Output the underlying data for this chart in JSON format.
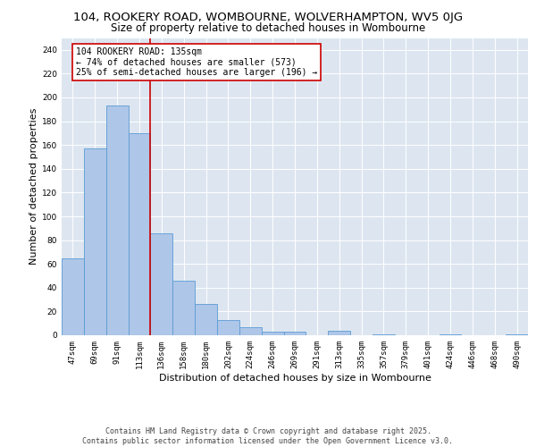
{
  "title": "104, ROOKERY ROAD, WOMBOURNE, WOLVERHAMPTON, WV5 0JG",
  "subtitle": "Size of property relative to detached houses in Wombourne",
  "xlabel": "Distribution of detached houses by size in Wombourne",
  "ylabel": "Number of detached properties",
  "categories": [
    "47sqm",
    "69sqm",
    "91sqm",
    "113sqm",
    "136sqm",
    "158sqm",
    "180sqm",
    "202sqm",
    "224sqm",
    "246sqm",
    "269sqm",
    "291sqm",
    "313sqm",
    "335sqm",
    "357sqm",
    "379sqm",
    "401sqm",
    "424sqm",
    "446sqm",
    "468sqm",
    "490sqm"
  ],
  "values": [
    65,
    157,
    193,
    170,
    86,
    46,
    26,
    13,
    7,
    3,
    3,
    0,
    4,
    0,
    1,
    0,
    0,
    1,
    0,
    0,
    1
  ],
  "bar_color": "#aec6e8",
  "bar_edgecolor": "#5b9bd5",
  "background_color": "#dde6f0",
  "grid_color": "#ffffff",
  "vline_index": 3.5,
  "vline_color": "#cc0000",
  "annotation_line1": "104 ROOKERY ROAD: 135sqm",
  "annotation_line2": "← 74% of detached houses are smaller (573)",
  "annotation_line3": "25% of semi-detached houses are larger (196) →",
  "annotation_box_facecolor": "#ffffff",
  "annotation_box_edgecolor": "#cc0000",
  "footer_text": "Contains HM Land Registry data © Crown copyright and database right 2025.\nContains public sector information licensed under the Open Government Licence v3.0.",
  "ylim": [
    0,
    250
  ],
  "yticks": [
    0,
    20,
    40,
    60,
    80,
    100,
    120,
    140,
    160,
    180,
    200,
    220,
    240
  ],
  "title_fontsize": 9.5,
  "subtitle_fontsize": 8.5,
  "xlabel_fontsize": 8,
  "ylabel_fontsize": 8,
  "tick_fontsize": 6.5,
  "annotation_fontsize": 7,
  "footer_fontsize": 6
}
